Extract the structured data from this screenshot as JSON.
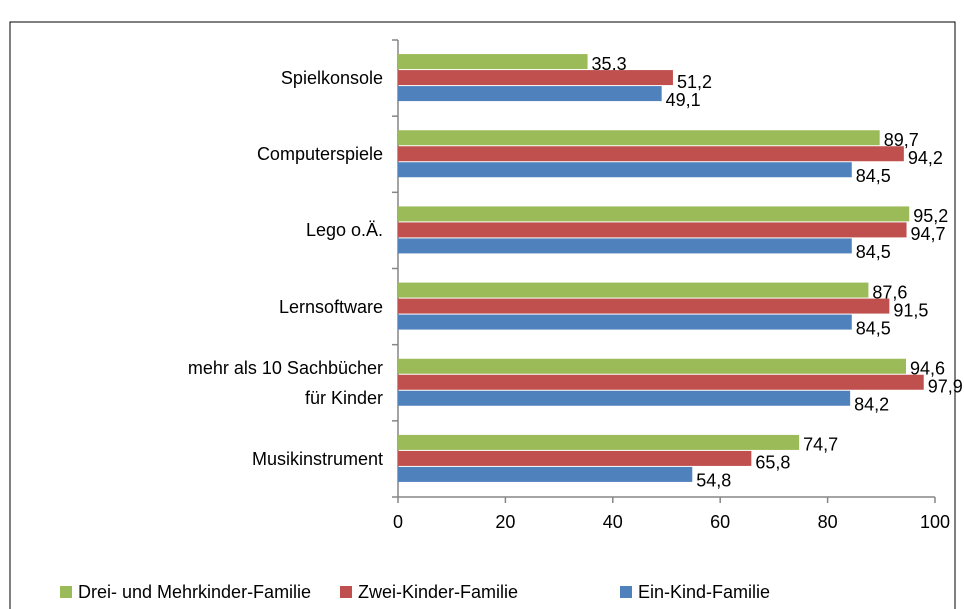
{
  "chart_data": {
    "type": "hbar",
    "categories": [
      "Spielkonsole",
      "Computerspiele",
      "Lego o.Ä.",
      "Lernsoftware",
      "mehr als 10 Sachbücher für Kinder",
      "Musikinstrument"
    ],
    "series": [
      {
        "name": "Drei- und Mehrkinder-Familie",
        "color": "#9bbb59",
        "values": [
          35.3,
          89.7,
          95.2,
          87.6,
          94.6,
          74.7
        ],
        "value_labels": [
          "35,3",
          "89,7",
          "95,2",
          "87,6",
          "94,6",
          "74,7"
        ]
      },
      {
        "name": "Zwei-Kinder-Familie",
        "color": "#c0504d",
        "values": [
          51.2,
          94.2,
          94.7,
          91.5,
          97.9,
          65.8
        ],
        "value_labels": [
          "51,2",
          "94,2",
          "94,7",
          "91,5",
          "97,9",
          "65,8"
        ]
      },
      {
        "name": "Ein-Kind-Familie",
        "color": "#4f81bd",
        "values": [
          49.1,
          84.5,
          84.5,
          84.5,
          84.2,
          54.8
        ],
        "value_labels": [
          "49,1",
          "84,5",
          "84,5",
          "84,5",
          "84,2",
          "54,8"
        ]
      }
    ],
    "xlim": [
      0,
      100
    ],
    "xticks": [
      0,
      20,
      40,
      60,
      80,
      100
    ],
    "legend": "bottom"
  }
}
